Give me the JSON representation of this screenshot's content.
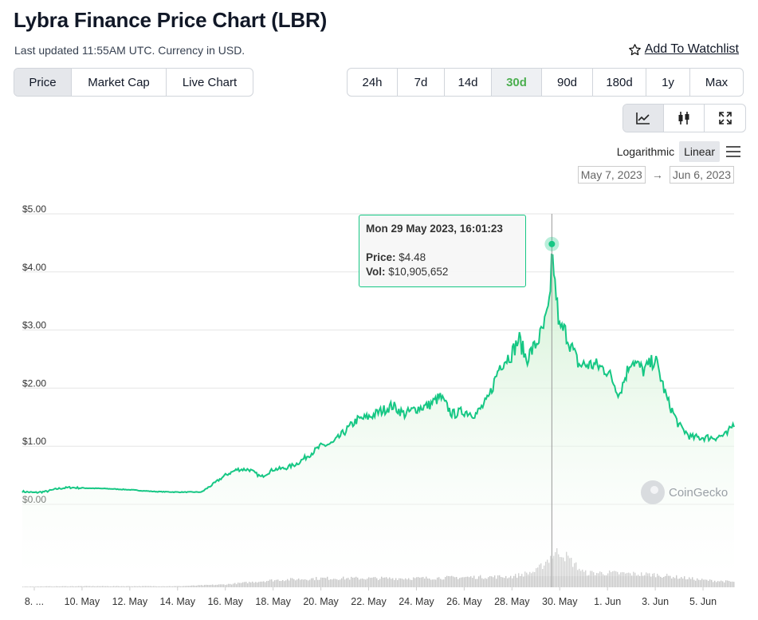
{
  "header": {
    "title": "Lybra Finance Price Chart (LBR)",
    "subtitle": "Last updated 11:55AM UTC. Currency in USD.",
    "watchlist_label": "Add To Watchlist"
  },
  "tabs": [
    {
      "label": "Price",
      "active": true
    },
    {
      "label": "Market Cap",
      "active": false
    },
    {
      "label": "Live Chart",
      "active": false
    }
  ],
  "ranges": [
    {
      "label": "24h",
      "active": false
    },
    {
      "label": "7d",
      "active": false
    },
    {
      "label": "14d",
      "active": false
    },
    {
      "label": "30d",
      "active": true
    },
    {
      "label": "90d",
      "active": false
    },
    {
      "label": "180d",
      "active": false
    },
    {
      "label": "1y",
      "active": false
    },
    {
      "label": "Max",
      "active": false
    }
  ],
  "chart_type_icons": [
    "line-chart-icon",
    "candlestick-icon",
    "expand-icon"
  ],
  "scale": {
    "log_label": "Logarithmic",
    "linear_label": "Linear",
    "selected": "Linear"
  },
  "date_range": {
    "from": "May 7, 2023",
    "arrow": "→",
    "to": "Jun 6, 2023"
  },
  "tooltip": {
    "title": "Mon 29 May 2023, 16:01:23",
    "price_label": "Price:",
    "price_value": "$4.48",
    "vol_label": "Vol:",
    "vol_value": "$10,905,652"
  },
  "watermark": "CoinGecko",
  "colors": {
    "line": "#16c784",
    "fill": "#dff5e0",
    "volume": "#c8c8c8",
    "grid": "#e6e6e6",
    "active_range": "#4caf50"
  },
  "chart_data": {
    "type": "area",
    "title": "",
    "xlabel": "",
    "ylabel": "",
    "ylim": [
      0,
      5
    ],
    "y_ticks": [
      "$0.00",
      "$1.00",
      "$2.00",
      "$3.00",
      "$4.00",
      "$5.00"
    ],
    "y_tick_values": [
      0,
      1,
      2,
      3,
      4,
      5
    ],
    "x_ticks": [
      "8. ...",
      "10. May",
      "12. May",
      "14. May",
      "16. May",
      "18. May",
      "20. May",
      "22. May",
      "24. May",
      "26. May",
      "28. May",
      "30. May",
      "1. Jun",
      "3. Jun",
      "5. Jun"
    ],
    "x_tick_days": [
      8,
      10,
      12,
      14,
      16,
      18,
      20,
      22,
      24,
      26,
      28,
      30,
      32,
      34,
      36
    ],
    "x_range_days": [
      7.5,
      37.3
    ],
    "grid": true,
    "series": [
      {
        "values_x_days": [
          7.5,
          8.0,
          8.5,
          9.0,
          9.5,
          10.0,
          11.0,
          12.0,
          13.0,
          14.0,
          15.0,
          15.5,
          16.0,
          16.5,
          17.0,
          17.5,
          18.0,
          18.5,
          19.0,
          19.5,
          20.0,
          20.5,
          21.0,
          21.5,
          22.0,
          22.5,
          23.0,
          23.5,
          24.0,
          24.5,
          25.0,
          25.5,
          26.0,
          26.5,
          27.0,
          27.5,
          28.0,
          28.3,
          28.6,
          29.0,
          29.3,
          29.6,
          29.67,
          29.8,
          30.0,
          30.2,
          30.5,
          30.8,
          31.0,
          31.5,
          32.0,
          32.5,
          33.0,
          33.5,
          34.0,
          34.5,
          35.0,
          35.5,
          36.0,
          36.5,
          37.0,
          37.3
        ],
        "values_price": [
          0.22,
          0.2,
          0.22,
          0.27,
          0.29,
          0.28,
          0.27,
          0.25,
          0.22,
          0.21,
          0.21,
          0.35,
          0.5,
          0.6,
          0.6,
          0.47,
          0.6,
          0.62,
          0.7,
          0.85,
          1.0,
          1.05,
          1.25,
          1.45,
          1.5,
          1.6,
          1.7,
          1.55,
          1.65,
          1.7,
          1.85,
          1.55,
          1.6,
          1.55,
          1.8,
          2.4,
          2.6,
          2.85,
          2.5,
          2.75,
          3.0,
          3.45,
          4.48,
          3.8,
          3.0,
          3.0,
          2.7,
          2.4,
          2.4,
          2.4,
          2.3,
          1.9,
          2.5,
          2.3,
          2.5,
          1.8,
          1.35,
          1.15,
          1.15,
          1.15,
          1.2,
          1.4
        ]
      }
    ],
    "volume_series": {
      "values_x_days": [
        7.5,
        10,
        14,
        16,
        18,
        20,
        22,
        24,
        26,
        28,
        29,
        29.67,
        30,
        30.5,
        31,
        32,
        34,
        36,
        37.3
      ],
      "relative_volume": [
        0.02,
        0.03,
        0.03,
        0.08,
        0.2,
        0.25,
        0.25,
        0.25,
        0.28,
        0.3,
        0.45,
        0.9,
        1.0,
        0.7,
        0.4,
        0.4,
        0.35,
        0.2,
        0.15
      ]
    }
  }
}
